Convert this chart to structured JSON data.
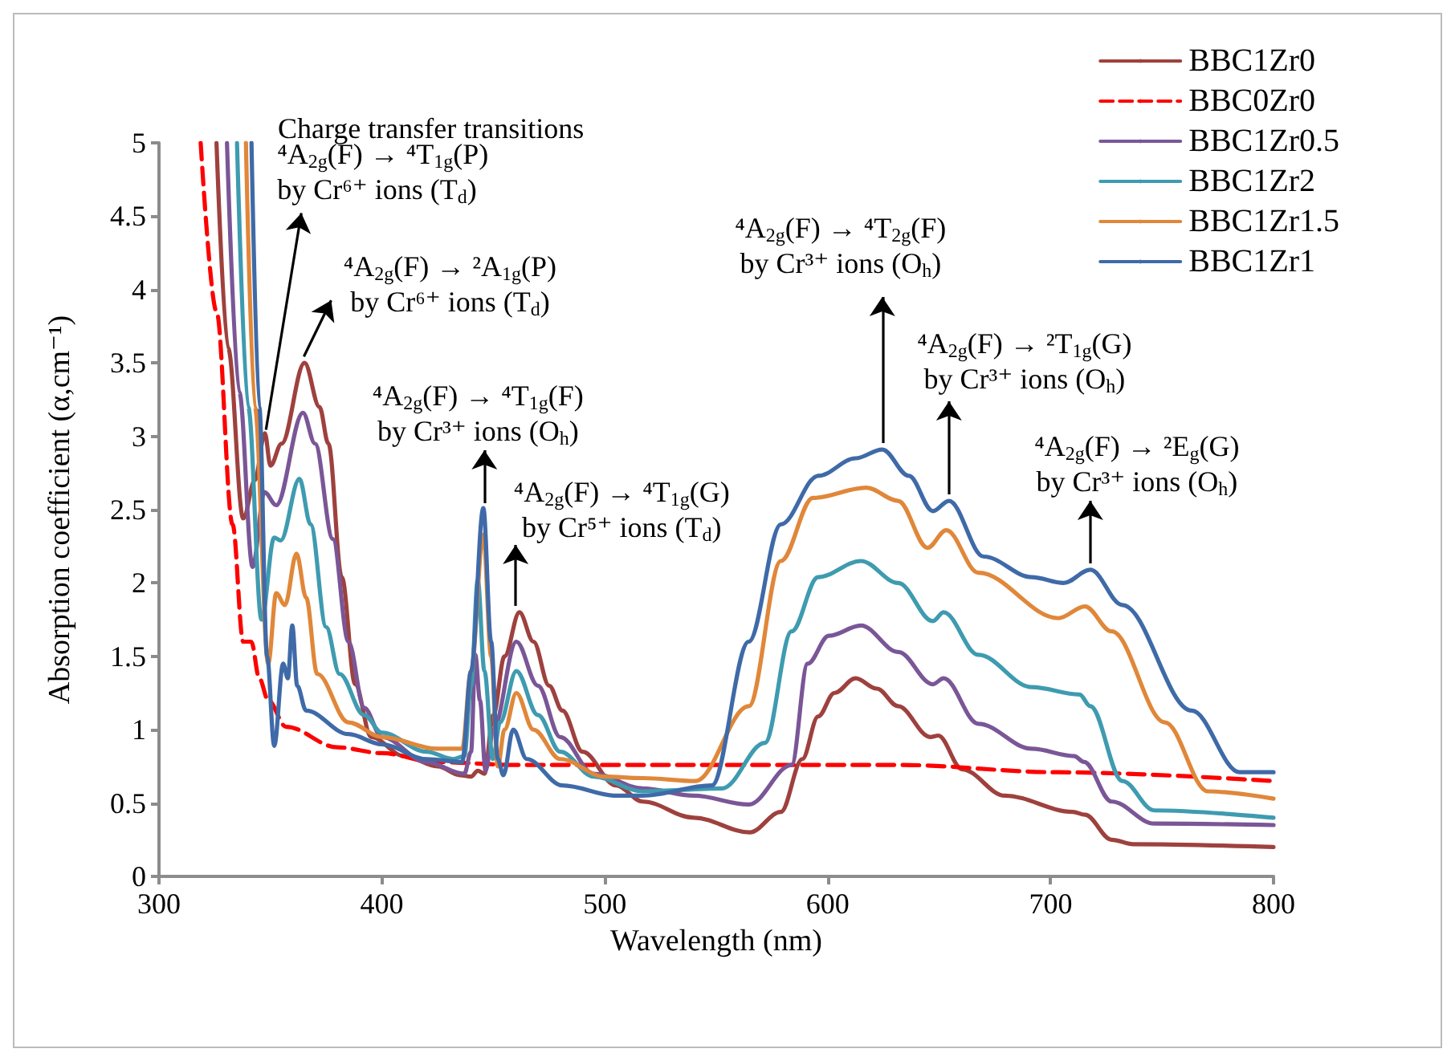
{
  "chart_data": {
    "type": "line",
    "xlabel": "Wavelength (nm)",
    "ylabel": "Absorption coefficient (α,cm⁻¹)",
    "xlim": [
      300,
      800
    ],
    "xticks": [
      300,
      400,
      500,
      600,
      700,
      800
    ],
    "ylim": [
      0,
      5
    ],
    "yticks": [
      0,
      0.5,
      1,
      1.5,
      2,
      2.5,
      3,
      3.5,
      4,
      4.5,
      5
    ],
    "legend": "top right",
    "marker": "none",
    "series": [
      {
        "name": "BBC1Zr0",
        "color": "#9e413e",
        "x": [
          325.8,
          331,
          337.8,
          343,
          347.5,
          350,
          355,
          365.3,
          372,
          376,
          382,
          388,
          395.2,
          410,
          425,
          435,
          440,
          443,
          446,
          450,
          455,
          461.7,
          468,
          475,
          481,
          490,
          505,
          517,
          540,
          565,
          579,
          588.6,
          595.7,
          603,
          612.5,
          622,
          631.6,
          646,
          649.6,
          660.3,
          679.5,
          710,
          715.4,
          727.4,
          737,
          800
        ],
        "values": [
          5,
          3.6,
          2.44,
          2.7,
          3.02,
          2.8,
          2.95,
          3.5,
          3.2,
          2.95,
          2.04,
          1.31,
          0.95,
          0.82,
          0.75,
          0.69,
          0.68,
          0.72,
          0.7,
          1.1,
          1.5,
          1.8,
          1.6,
          1.3,
          1.13,
          0.85,
          0.62,
          0.51,
          0.4,
          0.3,
          0.44,
          0.8,
          1.09,
          1.25,
          1.35,
          1.28,
          1.16,
          0.95,
          0.96,
          0.73,
          0.55,
          0.44,
          0.42,
          0.25,
          0.22,
          0.2
        ]
      },
      {
        "name": "BBC0Zr0",
        "color": "#ff0000",
        "line_style": "dashed",
        "x": [
          318.7,
          325.8,
          333,
          337.8,
          341.4,
          345,
          349,
          357,
          380,
          400,
          424,
          460,
          600,
          631.7,
          703.5,
          800
        ],
        "values": [
          5,
          3.85,
          2.4,
          1.6,
          1.6,
          1.35,
          1.2,
          1.02,
          0.88,
          0.84,
          0.78,
          0.76,
          0.76,
          0.76,
          0.71,
          0.65
        ]
      },
      {
        "name": "BBC1Zr0.5",
        "color": "#7a5697",
        "x": [
          330.5,
          336,
          342,
          347.3,
          352.6,
          364.6,
          370,
          378,
          385,
          392,
          400,
          420,
          437,
          440,
          441.9,
          444,
          446.5,
          450,
          460.3,
          470,
          480,
          495,
          517,
          540,
          564.6,
          583.8,
          591,
          600.5,
          614.9,
          631.6,
          647.2,
          652,
          667.6,
          691.5,
          710.6,
          715,
          727.4,
          746.5,
          800
        ],
        "values": [
          5,
          3.3,
          2.11,
          2.62,
          2.53,
          3.16,
          2.95,
          2.3,
          1.6,
          1.15,
          0.95,
          0.78,
          0.7,
          0.85,
          1.51,
          1.2,
          0.72,
          1.0,
          1.6,
          1.3,
          0.95,
          0.7,
          0.6,
          0.55,
          0.49,
          0.76,
          1.45,
          1.64,
          1.71,
          1.53,
          1.31,
          1.35,
          1.04,
          0.87,
          0.82,
          0.78,
          0.51,
          0.36,
          0.35
        ]
      },
      {
        "name": "BBC1Zr2",
        "color": "#3e9bb0",
        "x": [
          335,
          340,
          346,
          351.7,
          354.6,
          363,
          368,
          375,
          381,
          392,
          400,
          420,
          432,
          437,
          440,
          443,
          446,
          449.8,
          453,
          460.3,
          470,
          480,
          495,
          517,
          552.7,
          571.8,
          583.8,
          595.7,
          614.9,
          631.6,
          647.2,
          652,
          667.6,
          691.5,
          713,
          717.8,
          732.2,
          746.5,
          800
        ],
        "values": [
          5,
          3.2,
          1.75,
          2.31,
          2.29,
          2.71,
          2.4,
          1.7,
          1.38,
          1.1,
          0.98,
          0.85,
          0.8,
          0.82,
          1.3,
          2.02,
          1.4,
          0.8,
          1.05,
          1.4,
          1.1,
          0.85,
          0.68,
          0.58,
          0.6,
          0.91,
          1.67,
          2.04,
          2.15,
          2.0,
          1.74,
          1.8,
          1.51,
          1.29,
          1.24,
          1.16,
          0.65,
          0.45,
          0.4
        ]
      },
      {
        "name": "BBC1Zr1.5",
        "color": "#e0873a",
        "x": [
          339,
          343,
          349,
          352.6,
          356.5,
          361.7,
          366,
          371,
          385,
          400,
          425,
          436,
          440,
          445.5,
          449,
          452,
          455,
          460.3,
          468,
          480,
          500,
          517,
          540.7,
          564.6,
          579,
          593.4,
          617.3,
          631.6,
          644.8,
          653.2,
          667.6,
          703.5,
          715.4,
          727.4,
          751.3,
          770.5,
          800
        ],
        "values": [
          5,
          3.2,
          1.45,
          1.93,
          1.85,
          2.2,
          1.9,
          1.38,
          1.05,
          0.95,
          0.87,
          0.87,
          1.4,
          2.33,
          1.5,
          0.75,
          1.0,
          1.25,
          1.0,
          0.8,
          0.68,
          0.67,
          0.65,
          1.16,
          2.15,
          2.58,
          2.65,
          2.56,
          2.24,
          2.36,
          2.07,
          1.76,
          1.84,
          1.67,
          1.05,
          0.58,
          0.53
        ]
      },
      {
        "name": "BBC1Zr1",
        "color": "#3f6aa8",
        "x": [
          341.5,
          345,
          348.5,
          351.7,
          355.7,
          357.8,
          359.8,
          362,
          366,
          385,
          400,
          420,
          436,
          440,
          445.5,
          449,
          452,
          454.5,
          458.9,
          465,
          481,
          505,
          517,
          548,
          564.6,
          579,
          595.7,
          612.5,
          624.5,
          636.4,
          647.2,
          654.4,
          670,
          691.5,
          705.9,
          717.8,
          732.2,
          763.3,
          784.8,
          800
        ],
        "values": [
          5,
          3.2,
          1.5,
          0.89,
          1.45,
          1.35,
          1.71,
          1.3,
          1.13,
          0.97,
          0.9,
          0.8,
          0.78,
          1.4,
          2.51,
          1.6,
          0.8,
          0.69,
          1.0,
          0.8,
          0.62,
          0.55,
          0.55,
          0.62,
          1.6,
          2.4,
          2.73,
          2.85,
          2.91,
          2.73,
          2.49,
          2.56,
          2.18,
          2.04,
          2.0,
          2.09,
          1.85,
          1.13,
          0.71,
          0.71
        ]
      }
    ],
    "annotations": [
      "Charge transfer transitions",
      {
        "text": "⁴A$_{2g}$(F) → ⁴T$_{1g}$(P)\nby Cr⁶⁺ ions (T$_{d}$)",
        "x": 348,
        "y": 3.0
      },
      {
        "text": "⁴A$_{2g}$(F) → ²A$_{1g}$(P)\nby Cr⁶⁺ ions (T$_{d}$)",
        "x": 365,
        "y": 3.5
      },
      {
        "text": "⁴A$_{2g}$(F) → ⁴T$_{1g}$(F)\nby Cr³⁺ ions (O$_{h}$)",
        "x": 446,
        "y": 2.5
      },
      {
        "text": "⁴A$_{2g}$(F) → ⁴T$_{1g}$(G)\nby Cr⁵⁺ ions (T$_{d}$)",
        "x": 460,
        "y": 1.8
      },
      {
        "text": "⁴A$_{2g}$(F) → ⁴T$_{2g}$(F)\nby Cr³⁺ ions (O$_{h}$)",
        "x": 624.5,
        "y": 2.91
      },
      {
        "text": "⁴A$_{2g}$(F) → ²T$_{1g}$(G)\nby Cr³⁺ ions (O$_{h}$)",
        "x": 654.4,
        "y": 2.56
      },
      {
        "text": "⁴A$_{2g}$(F) → ²E$_{g}$(G)\nby Cr³⁺ ions (O$_{h}$)",
        "x": 717.8,
        "y": 2.09
      }
    ]
  }
}
